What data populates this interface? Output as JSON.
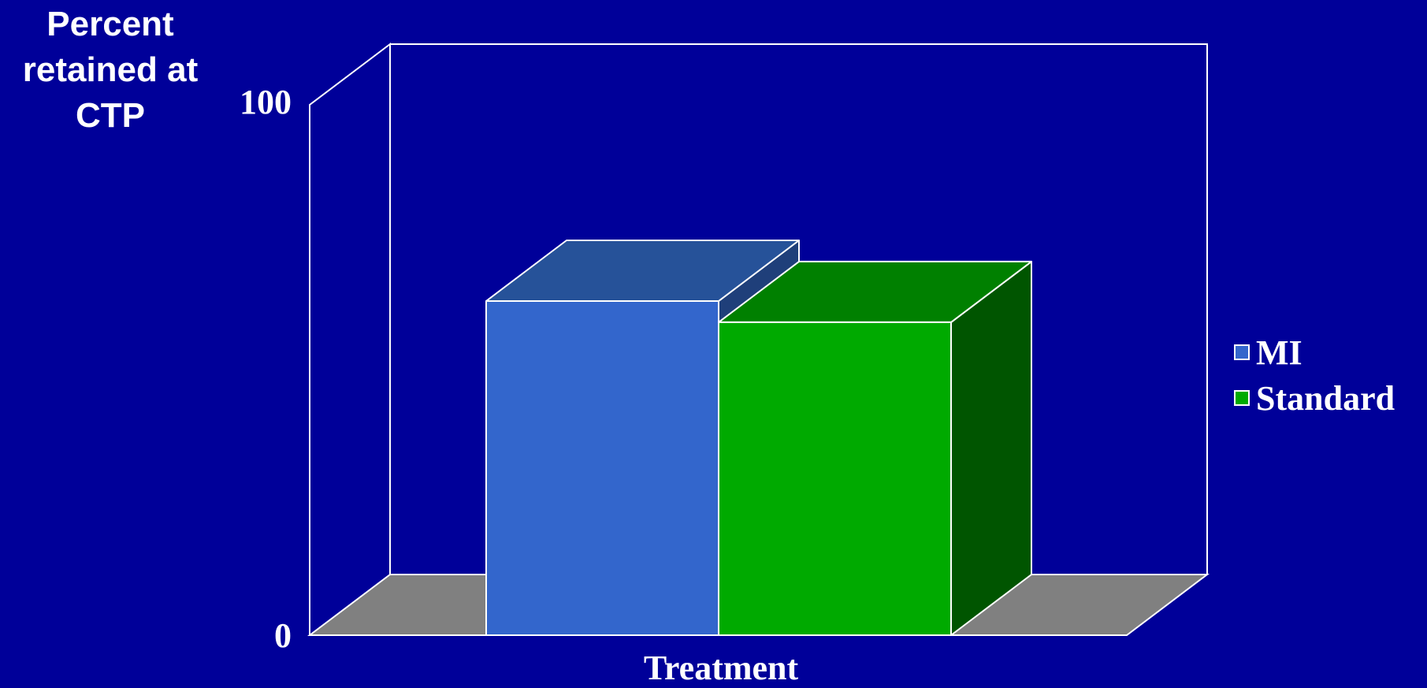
{
  "chart_data": {
    "type": "bar",
    "ylabel": [
      "Percent",
      "retained at",
      "CTP"
    ],
    "xlabel": "Treatment",
    "ylim": [
      0,
      100
    ],
    "y_ticks": [
      "0",
      "100"
    ],
    "categories": [
      "Treatment"
    ],
    "series": [
      {
        "name": "MI",
        "values": [
          63
        ]
      },
      {
        "name": "Standard",
        "values": [
          59
        ]
      }
    ],
    "legend_position": "right",
    "grid": false,
    "style": "3d"
  },
  "colors": {
    "background": "#000099",
    "floor": "#808080",
    "mi_front": "#3366CC",
    "mi_top": "#265299",
    "mi_side": "#1F3F7A",
    "standard_front": "#00AA00",
    "standard_top": "#008000",
    "standard_side": "#005500",
    "outline": "#FFFFFF"
  }
}
